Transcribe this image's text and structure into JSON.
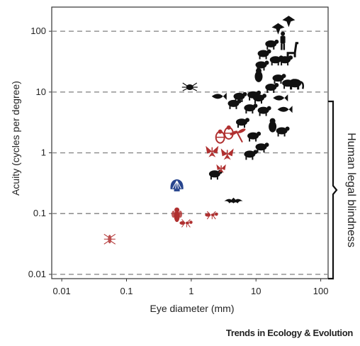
{
  "chart_data": {
    "type": "scatter",
    "xlabel": "Eye diameter (mm)",
    "ylabel": "Acuity (cycles per degree)",
    "x_scale": "log",
    "y_scale": "log",
    "xlim": [
      0.007,
      130
    ],
    "ylim": [
      0.0085,
      250
    ],
    "x_ticks": [
      0.01,
      0.1,
      1,
      10,
      100
    ],
    "x_tick_labels": [
      "0.01",
      "0.1",
      "1",
      "10",
      "100"
    ],
    "y_ticks": [
      0.01,
      0.1,
      1,
      10,
      100
    ],
    "y_tick_labels": [
      "0.01",
      "0.1",
      "1",
      "10",
      "100"
    ],
    "grid": "dashed horizontal lines at y ticks",
    "bracket": {
      "label": "Human legal blindness",
      "y_from": 0.01,
      "y_to": 10,
      "placement": "right"
    },
    "series": [
      {
        "color": "#111111",
        "icon": "vertebrate-silhouette",
        "points": [
          {
            "x": 32,
            "y": 145,
            "icon": "eagle-icon"
          },
          {
            "x": 22,
            "y": 110,
            "icon": "hawk-icon"
          },
          {
            "x": 26,
            "y": 68,
            "icon": "human-icon"
          },
          {
            "x": 17,
            "y": 62,
            "icon": "monkey-icon"
          },
          {
            "x": 36,
            "y": 44,
            "icon": "giraffe-icon"
          },
          {
            "x": 13,
            "y": 43,
            "icon": "squirrel-icon"
          },
          {
            "x": 20,
            "y": 34,
            "icon": "cheetah-icon"
          },
          {
            "x": 28,
            "y": 34,
            "icon": "horse-icon"
          },
          {
            "x": 12,
            "y": 28,
            "icon": "bird-icon"
          },
          {
            "x": 11,
            "y": 18,
            "icon": "penguin-icon"
          },
          {
            "x": 22,
            "y": 17,
            "icon": "camel-icon"
          },
          {
            "x": 40,
            "y": 14,
            "icon": "elephant-icon"
          },
          {
            "x": 31,
            "y": 14,
            "icon": "deer-icon"
          },
          {
            "x": 17,
            "y": 12,
            "icon": "wolf-icon"
          },
          {
            "x": 23,
            "y": 8,
            "icon": "shark-icon"
          },
          {
            "x": 9,
            "y": 9,
            "icon": "dog-icon"
          },
          {
            "x": 2.6,
            "y": 8.5,
            "icon": "fish-icon"
          },
          {
            "x": 5.5,
            "y": 8.5,
            "icon": "crocodile-icon"
          },
          {
            "x": 11,
            "y": 8,
            "icon": "turtle-icon"
          },
          {
            "x": 4.5,
            "y": 6.5,
            "icon": "frog-icon"
          },
          {
            "x": 8,
            "y": 5.5,
            "icon": "bird-small-icon"
          },
          {
            "x": 13,
            "y": 5,
            "icon": "seal-icon"
          },
          {
            "x": 27,
            "y": 5.2,
            "icon": "whale-icon"
          },
          {
            "x": 6,
            "y": 3.2,
            "icon": "cat-icon"
          },
          {
            "x": 18,
            "y": 2.7,
            "icon": "owl-icon"
          },
          {
            "x": 25,
            "y": 2.3,
            "icon": "hare-icon"
          },
          {
            "x": 9,
            "y": 1.9,
            "icon": "rat-icon"
          },
          {
            "x": 12,
            "y": 1.25,
            "icon": "sloth-icon"
          },
          {
            "x": 8,
            "y": 0.95,
            "icon": "mouse-icon"
          },
          {
            "x": 2.3,
            "y": 0.45,
            "icon": "mole-icon"
          },
          {
            "x": 4.5,
            "y": 0.16,
            "icon": "bat-icon"
          },
          {
            "x": 0.95,
            "y": 12,
            "icon": "jumping-spider-icon"
          }
        ]
      },
      {
        "color": "#b03030",
        "icon": "invertebrate-silhouette",
        "points": [
          {
            "x": 3.8,
            "y": 2.1,
            "icon": "bee-icon"
          },
          {
            "x": 2.8,
            "y": 1.8,
            "icon": "mantis-shrimp-icon"
          },
          {
            "x": 5.3,
            "y": 1.9,
            "icon": "dragonfly-icon"
          },
          {
            "x": 2.1,
            "y": 1.05,
            "icon": "butterfly-icon"
          },
          {
            "x": 3.6,
            "y": 0.95,
            "icon": "moth-icon"
          },
          {
            "x": 2.9,
            "y": 0.55,
            "icon": "butterfly-small-icon"
          },
          {
            "x": 0.6,
            "y": 0.095,
            "icon": "fly-icon"
          },
          {
            "x": 2.1,
            "y": 0.095,
            "icon": "mosquito-icon"
          },
          {
            "x": 0.85,
            "y": 0.07,
            "icon": "ant-icon"
          },
          {
            "x": 0.055,
            "y": 0.038,
            "icon": "fruitfly-icon"
          }
        ]
      },
      {
        "color": "#27458e",
        "icon": "scallop-silhouette",
        "points": [
          {
            "x": 0.6,
            "y": 0.28,
            "icon": "scallop-icon"
          }
        ]
      }
    ]
  },
  "credit": "Trends in Ecology & Evolution"
}
